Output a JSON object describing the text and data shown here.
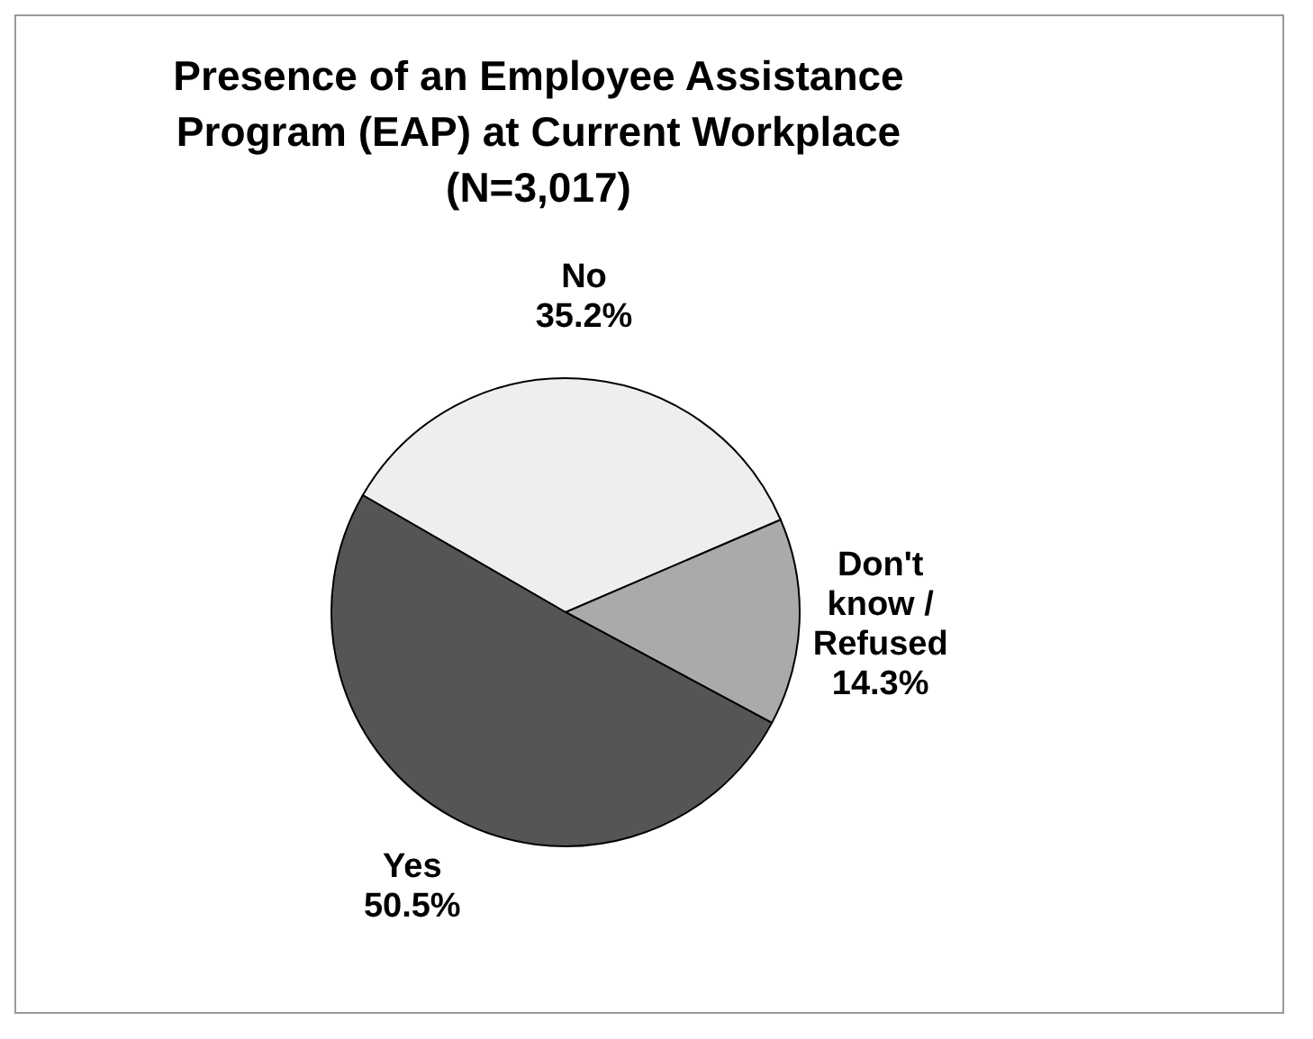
{
  "chart_data": {
    "type": "pie",
    "title": "Presence of an Employee Assistance Program (EAP) at Current Workplace (N=3,017)",
    "categories": [
      "No",
      "Don't know / Refused",
      "Yes"
    ],
    "values": [
      35.2,
      14.3,
      50.5
    ],
    "value_labels": [
      "35.2%",
      "14.3%",
      "50.5%"
    ],
    "colors": [
      "#eeeeee",
      "#aaaaaa",
      "#555555"
    ],
    "legend": false
  }
}
